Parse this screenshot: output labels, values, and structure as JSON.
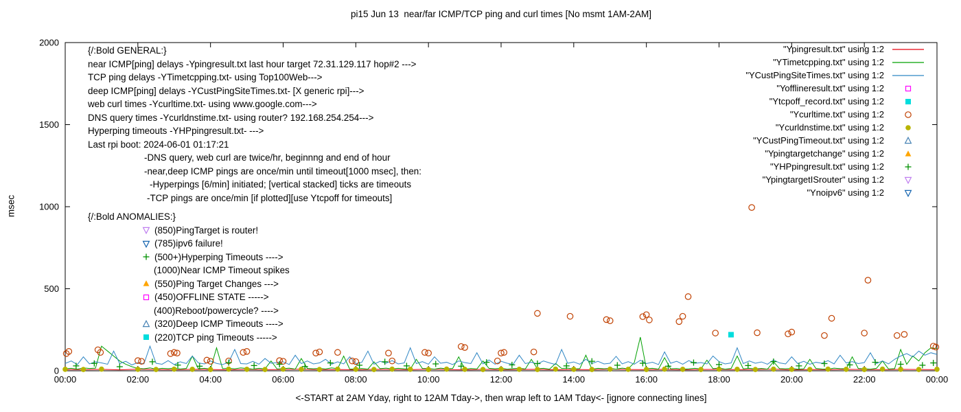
{
  "chart_data": {
    "type": "mixed",
    "title": "pi15 Jun 13  near/far ICMP/TCP ping and curl times [No msmt 1AM-2AM]",
    "ylabel": "msec",
    "xlabel": "<-START at 2AM Yday, right to 12AM Tday->, then wrap left to 1AM Tday<- [ignore connecting lines]",
    "ylim": [
      0,
      2000
    ],
    "xlim": [
      0,
      24
    ],
    "y_ticks": [
      0,
      500,
      1000,
      1500,
      2000
    ],
    "x_tick_labels": [
      "00:00",
      "02:00",
      "04:00",
      "06:00",
      "08:00",
      "10:00",
      "12:00",
      "14:00",
      "16:00",
      "18:00",
      "20:00",
      "22:00",
      "00:00"
    ],
    "legend_position": "top-right-inside",
    "grid": false,
    "series": [
      {
        "name": "ypingresult",
        "legend_label": "\"Ypingresult.txt\" using 1:2",
        "type": "line",
        "color": "#e8000d",
        "x_step": 0.5,
        "values": [
          8,
          7,
          9,
          6,
          10,
          8,
          7,
          9,
          8,
          6,
          9,
          7,
          8,
          10,
          7,
          8,
          6,
          9,
          8,
          7,
          10,
          8,
          6,
          9,
          7,
          8,
          9,
          6,
          8,
          7,
          10,
          8,
          7,
          9,
          6,
          8,
          9,
          7,
          8,
          10,
          6,
          8,
          7,
          9,
          8,
          7,
          9,
          8,
          7
        ]
      },
      {
        "name": "ytimetcpping",
        "legend_label": "\"YTimetcpping.txt\" using 1:2",
        "type": "line",
        "color": "#00a000",
        "x_step": 0.1666667,
        "values": [
          12,
          15,
          10,
          18,
          14,
          16,
          150,
          120,
          90,
          60,
          40,
          25,
          14,
          12,
          18,
          10,
          15,
          13,
          16,
          11,
          14,
          90,
          12,
          15,
          10,
          140,
          13,
          16,
          12,
          18,
          14,
          10,
          15,
          12,
          60,
          11,
          13,
          16,
          10,
          75,
          14,
          12,
          15,
          11,
          18,
          13,
          90,
          10,
          12,
          14,
          10,
          55,
          13,
          16,
          11,
          15,
          12,
          10,
          70,
          14,
          13,
          10,
          16,
          12,
          14,
          85,
          10,
          14,
          11,
          60,
          15,
          12,
          16,
          10,
          13,
          15,
          11,
          70,
          12,
          15,
          10,
          45,
          14,
          16,
          11,
          13,
          95,
          10,
          15,
          12,
          14,
          10,
          16,
          12,
          50,
          205,
          13,
          15,
          10,
          80,
          12,
          14,
          10,
          12,
          15,
          11,
          65,
          13,
          16,
          10,
          14,
          90,
          12,
          15,
          11,
          14,
          10,
          55,
          13,
          12,
          15,
          10,
          12,
          70,
          14,
          11,
          10,
          16,
          13,
          12,
          85,
          14,
          12,
          10,
          15,
          60,
          11,
          13,
          130,
          40,
          90,
          60,
          110,
          140,
          135
        ]
      },
      {
        "name": "ycustpingsitetimes",
        "legend_label": "\"YCustPingSiteTimes.txt\" using 1:2",
        "type": "line",
        "color": "#2f86c4",
        "x_step": 0.1666667,
        "values": [
          45,
          60,
          38,
          85,
          42,
          55,
          48,
          40,
          120,
          44,
          58,
          36,
          50,
          42,
          150,
          46,
          40,
          62,
          38,
          55,
          44,
          90,
          48,
          42,
          60,
          45,
          38,
          52,
          130,
          44,
          42,
          58,
          40,
          75,
          46,
          50,
          55,
          38,
          95,
          44,
          60,
          42,
          48,
          70,
          40,
          55,
          42,
          85,
          44,
          52,
          120,
          40,
          58,
          46,
          62,
          42,
          48,
          140,
          44,
          56,
          40,
          85,
          46,
          52,
          38,
          60,
          50,
          44,
          110,
          42,
          66,
          40,
          58,
          46,
          40,
          95,
          44,
          52,
          42,
          60,
          48,
          38,
          130,
          46,
          54,
          40,
          70,
          44,
          58,
          42,
          46,
          88,
          42,
          56,
          40,
          64,
          44,
          52,
          38,
          115,
          46,
          58,
          40,
          62,
          46,
          50,
          42,
          90,
          56,
          42,
          48,
          140,
          44,
          60,
          46,
          54,
          40,
          66,
          48,
          42,
          85,
          44,
          58,
          40,
          52,
          46,
          62,
          42,
          95,
          48,
          56,
          44,
          50,
          110,
          44,
          60,
          42,
          70,
          90,
          105,
          85,
          120,
          95,
          110,
          100
        ]
      },
      {
        "name": "yofflineresult",
        "legend_label": "\"Yofflineresult.txt\" using 1:2",
        "type": "scatter",
        "marker": "square-open",
        "color": "#ff00ff",
        "points": []
      },
      {
        "name": "ytcpoff_record",
        "legend_label": "\"Ytcpoff_record.txt\" using 1:2",
        "type": "scatter",
        "marker": "square-filled",
        "color": "#00dddd",
        "points": [
          [
            18.33,
            220
          ]
        ]
      },
      {
        "name": "ycurltime",
        "legend_label": "\"Ycurltime.txt\" using 1:2",
        "type": "scatter",
        "marker": "circle-open",
        "color": "#c04000",
        "points": [
          [
            0.03,
            105
          ],
          [
            0.1,
            118
          ],
          [
            0.9,
            128
          ],
          [
            0.97,
            112
          ],
          [
            2.0,
            62
          ],
          [
            2.1,
            58
          ],
          [
            2.9,
            105
          ],
          [
            3.0,
            112
          ],
          [
            3.08,
            108
          ],
          [
            3.9,
            65
          ],
          [
            4.0,
            58
          ],
          [
            4.5,
            60
          ],
          [
            4.9,
            112
          ],
          [
            5.0,
            118
          ],
          [
            5.9,
            62
          ],
          [
            6.0,
            58
          ],
          [
            6.9,
            108
          ],
          [
            7.0,
            115
          ],
          [
            7.5,
            112
          ],
          [
            7.9,
            60
          ],
          [
            8.0,
            56
          ],
          [
            8.9,
            108
          ],
          [
            9.0,
            60
          ],
          [
            9.9,
            112
          ],
          [
            10.0,
            108
          ],
          [
            10.9,
            148
          ],
          [
            11.0,
            142
          ],
          [
            11.9,
            60
          ],
          [
            12.0,
            108
          ],
          [
            12.08,
            112
          ],
          [
            12.9,
            115
          ],
          [
            13.0,
            350
          ],
          [
            13.9,
            332
          ],
          [
            14.9,
            312
          ],
          [
            15.0,
            305
          ],
          [
            15.9,
            330
          ],
          [
            16.0,
            342
          ],
          [
            16.08,
            310
          ],
          [
            16.9,
            300
          ],
          [
            17.0,
            332
          ],
          [
            17.15,
            452
          ],
          [
            17.9,
            230
          ],
          [
            18.9,
            995
          ],
          [
            19.05,
            232
          ],
          [
            19.9,
            225
          ],
          [
            20.0,
            236
          ],
          [
            20.9,
            215
          ],
          [
            21.1,
            320
          ],
          [
            22.0,
            230
          ],
          [
            22.1,
            552
          ],
          [
            22.9,
            215
          ],
          [
            23.1,
            222
          ],
          [
            23.9,
            150
          ],
          [
            23.97,
            145
          ]
        ]
      },
      {
        "name": "ycurldnstime",
        "legend_label": "\"Ycurldnstime.txt\" using 1:2",
        "type": "scatter",
        "marker": "circle-filled",
        "color": "#b8b400",
        "points": [
          [
            0,
            9
          ],
          [
            0.5,
            8
          ],
          [
            1,
            10
          ],
          [
            2,
            9
          ],
          [
            2.5,
            8
          ],
          [
            3,
            10
          ],
          [
            3.5,
            9
          ],
          [
            4,
            8
          ],
          [
            4.5,
            10
          ],
          [
            5,
            9
          ],
          [
            5.5,
            8
          ],
          [
            6,
            10
          ],
          [
            6.5,
            9
          ],
          [
            7,
            8
          ],
          [
            7.5,
            10
          ],
          [
            8,
            9
          ],
          [
            8.5,
            8
          ],
          [
            9,
            10
          ],
          [
            9.5,
            9
          ],
          [
            10,
            8
          ],
          [
            10.5,
            10
          ],
          [
            11,
            9
          ],
          [
            11.5,
            8
          ],
          [
            12,
            10
          ],
          [
            12.5,
            9
          ],
          [
            13,
            8
          ],
          [
            13.5,
            10
          ],
          [
            14,
            9
          ],
          [
            14.5,
            8
          ],
          [
            15,
            10
          ],
          [
            15.5,
            9
          ],
          [
            16,
            8
          ],
          [
            16.5,
            10
          ],
          [
            17,
            9
          ],
          [
            17.5,
            8
          ],
          [
            18,
            10
          ],
          [
            18.5,
            9
          ],
          [
            19,
            8
          ],
          [
            19.5,
            10
          ],
          [
            20,
            9
          ],
          [
            20.5,
            8
          ],
          [
            21,
            10
          ],
          [
            21.5,
            9
          ],
          [
            22,
            8
          ],
          [
            22.5,
            10
          ],
          [
            23,
            9
          ],
          [
            23.5,
            8
          ],
          [
            24,
            9
          ]
        ]
      },
      {
        "name": "ycustpingtimeout",
        "legend_label": "\"YCustPingTimeout.txt\" using 1:2",
        "type": "scatter",
        "marker": "triangle-open",
        "color": "#4682b4",
        "points": []
      },
      {
        "name": "ypingtargetchange",
        "legend_label": "\"Ypingtargetchange\" using 1:2",
        "type": "scatter",
        "marker": "triangle-filled",
        "color": "#ffa500",
        "points": []
      },
      {
        "name": "yhppingresult",
        "legend_label": "\"YHPpingresult.txt\" using 1:2",
        "type": "scatter",
        "marker": "plus",
        "color": "#009000",
        "points": [
          [
            0.3,
            30
          ],
          [
            0.8,
            45
          ],
          [
            1.5,
            25
          ],
          [
            2.4,
            55
          ],
          [
            3.1,
            35
          ],
          [
            3.7,
            28
          ],
          [
            4.5,
            50
          ],
          [
            5.2,
            32
          ],
          [
            5.9,
            40
          ],
          [
            6.6,
            26
          ],
          [
            7.3,
            48
          ],
          [
            8.1,
            34
          ],
          [
            8.8,
            55
          ],
          [
            9.4,
            30
          ],
          [
            10.2,
            42
          ],
          [
            10.9,
            28
          ],
          [
            11.6,
            52
          ],
          [
            12.3,
            36
          ],
          [
            13.0,
            44
          ],
          [
            13.8,
            30
          ],
          [
            14.5,
            58
          ],
          [
            15.2,
            34
          ],
          [
            15.9,
            46
          ],
          [
            16.6,
            28
          ],
          [
            17.3,
            50
          ],
          [
            18.0,
            38
          ],
          [
            18.8,
            32
          ],
          [
            19.5,
            56
          ],
          [
            20.2,
            30
          ],
          [
            20.9,
            44
          ],
          [
            21.6,
            36
          ],
          [
            22.3,
            52
          ],
          [
            23.0,
            40
          ],
          [
            23.6,
            34
          ],
          [
            23.9,
            48
          ]
        ]
      },
      {
        "name": "ypingtargetisrouter",
        "legend_label": "\"YpingtargetISrouter\" using 1:2",
        "type": "scatter",
        "marker": "triangle-down-open",
        "color": "#bf7fef",
        "points": []
      },
      {
        "name": "ynoipv6",
        "legend_label": "\"Ynoipv6\" using 1:2",
        "type": "scatter",
        "marker": "triangle-down-open",
        "color": "#1565b0",
        "points": []
      }
    ]
  },
  "general_block": {
    "lines": [
      {
        "t": "{/:Bold GENERAL:}",
        "in": 0
      },
      {
        "t": "near ICMP[ping] delays -Ypingresult.txt last hour target 72.31.129.117 hop#2 --->",
        "in": 0
      },
      {
        "t": "TCP ping delays -YTimetcpping.txt- using Top100Web--->",
        "in": 0
      },
      {
        "t": "deep ICMP[ping] delays -YCustPingSiteTimes.txt- [X generic rpi]--->",
        "in": 0
      },
      {
        "t": "web curl times -Ycurltime.txt- using www.google.com--->",
        "in": 0
      },
      {
        "t": "DNS query times -Ycurldnstime.txt- using router? 192.168.254.254--->",
        "in": 0
      },
      {
        "t": "Hyperping timeouts -YHPpingresult.txt- --->",
        "in": 0
      },
      {
        "t": "Last rpi boot: 2024-06-01 01:17:21",
        "in": 0
      },
      {
        "t": "-DNS query, web curl are twice/hr, beginnng and end of hour",
        "in": 82
      },
      {
        "t": "-near,deep ICMP pings are once/min until timeout[1000 msec], then:",
        "in": 82
      },
      {
        "t": "-Hyperpings [6/min] initiated; [vertical stacked] ticks are timeouts",
        "in": 90
      },
      {
        "t": "-TCP pings are once/min [if plotted][use Ytcpoff for timeouts]",
        "in": 86
      }
    ]
  },
  "anomalies_block": {
    "lines": [
      {
        "t": "{/:Bold ANOMALIES:}",
        "icon": null,
        "color": null,
        "in": 0
      },
      {
        "t": "(850)PingTarget is router!",
        "icon": "triangle-down-open",
        "color": "#bf7fef",
        "in": 78
      },
      {
        "t": "(785)ipv6 failure!",
        "icon": "triangle-down-open",
        "color": "#1565b0",
        "in": 78
      },
      {
        "t": "(500+)Hyperping Timeouts ---->",
        "icon": "plus",
        "color": "#009000",
        "in": 78
      },
      {
        "t": "(1000)Near ICMP Timeout spikes",
        "icon": null,
        "color": null,
        "in": 96
      },
      {
        "t": "(550)Ping Target Changes --->",
        "icon": "triangle-filled",
        "color": "#ffa500",
        "in": 78
      },
      {
        "t": "(450)OFFLINE STATE ----->",
        "icon": "square-open",
        "color": "#ff00ff",
        "in": 78
      },
      {
        "t": "(400)Reboot/powercycle? ---->",
        "icon": null,
        "color": null,
        "in": 96
      },
      {
        "t": "(320)Deep ICMP Timeouts ---->",
        "icon": "triangle-open",
        "color": "#4682b4",
        "in": 78
      },
      {
        "t": "(220)TCP ping Timeouts ----->",
        "icon": "square-filled",
        "color": "#00dddd",
        "in": 78
      }
    ]
  }
}
